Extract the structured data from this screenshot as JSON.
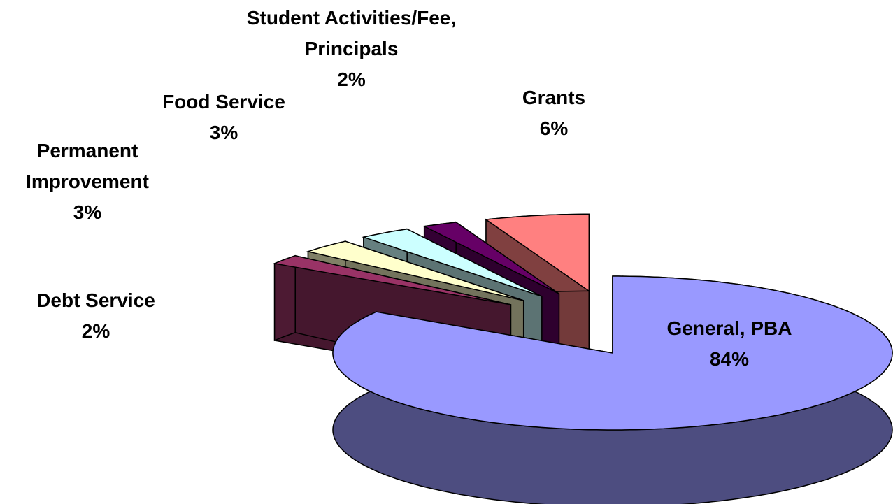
{
  "chart_data": {
    "type": "pie",
    "categories": [
      "General, PBA",
      "Debt Service",
      "Permanent Improvement",
      "Food Service",
      "Student Activities/Fee, Principals",
      "Grants"
    ],
    "values": [
      84,
      2,
      3,
      3,
      2,
      6
    ],
    "value_labels": [
      "84%",
      "2%",
      "3%",
      "3%",
      "2%",
      "6%"
    ],
    "colors": [
      "#9999ff",
      "#993366",
      "#ffffcc",
      "#ccffff",
      "#660066",
      "#ff8080"
    ]
  }
}
